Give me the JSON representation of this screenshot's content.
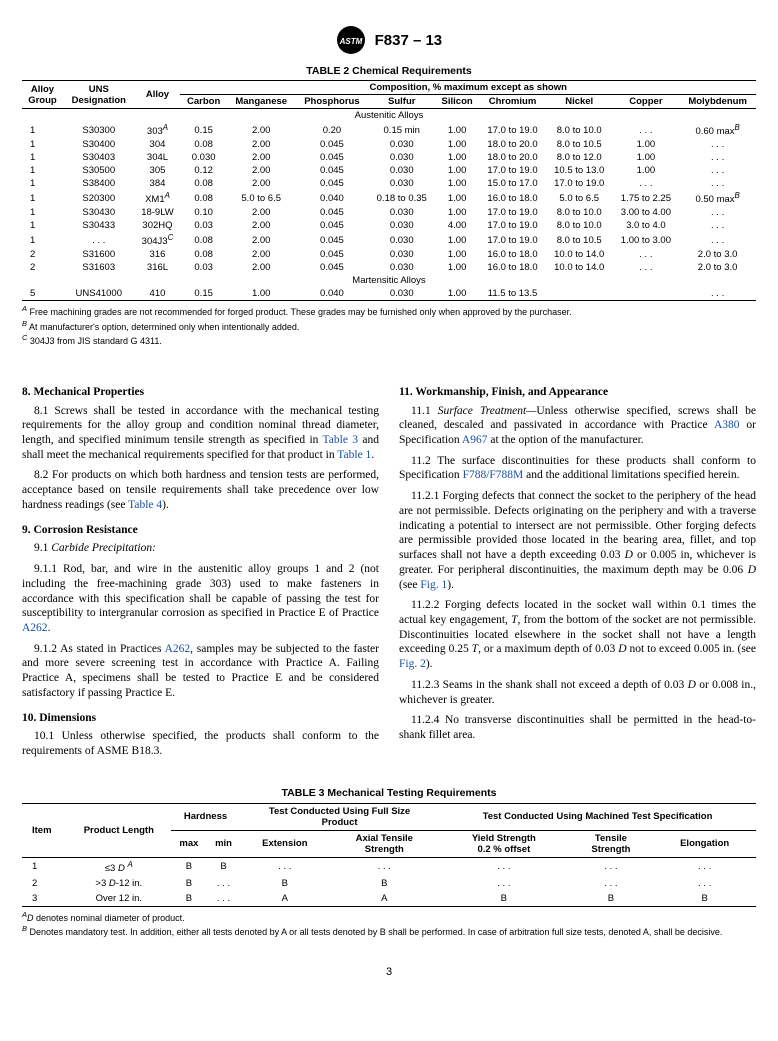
{
  "spec_label": "F837 – 13",
  "table2": {
    "title": "TABLE 2 Chemical Requirements",
    "span_header": "Composition, % maximum except as shown",
    "head_left": [
      "Alloy\nGroup",
      "UNS\nDesignation",
      "Alloy"
    ],
    "head_comp": [
      "Carbon",
      "Manganese",
      "Phosphorus",
      "Sulfur",
      "Silicon",
      "Chromium",
      "Nickel",
      "Copper",
      "Molybdenum"
    ],
    "section1": "Austenitic Alloys",
    "rows_a": [
      [
        "1",
        "S30300",
        {
          "t": "303",
          "s": "A"
        },
        "0.15",
        "2.00",
        "0.20",
        "0.15 min",
        "1.00",
        "17.0 to 19.0",
        "8.0 to 10.0",
        ". . .",
        {
          "t": "0.60 max",
          "s": "B"
        }
      ],
      [
        "1",
        "S30400",
        "304",
        "0.08",
        "2.00",
        "0.045",
        "0.030",
        "1.00",
        "18.0 to 20.0",
        "8.0 to 10.5",
        "1.00",
        ". . ."
      ],
      [
        "1",
        "S30403",
        "304L",
        "0.030",
        "2.00",
        "0.045",
        "0.030",
        "1.00",
        "18.0 to 20.0",
        "8.0 to 12.0",
        "1.00",
        ". . ."
      ],
      [
        "1",
        "S30500",
        "305",
        "0.12",
        "2.00",
        "0.045",
        "0.030",
        "1.00",
        "17.0 to 19.0",
        "10.5 to 13.0",
        "1.00",
        ". . ."
      ],
      [
        "1",
        "S38400",
        "384",
        "0.08",
        "2.00",
        "0.045",
        "0.030",
        "1.00",
        "15.0 to 17.0",
        "17.0 to 19.0",
        ". . .",
        ". . ."
      ],
      [
        "1",
        "S20300",
        {
          "t": "XM1",
          "s": "A"
        },
        "0.08",
        "5.0 to 6.5",
        "0.040",
        "0.18 to 0.35",
        "1.00",
        "16.0 to 18.0",
        "5.0 to 6.5",
        "1.75 to 2.25",
        {
          "t": "0.50 max",
          "s": "B"
        }
      ],
      [
        "1",
        "S30430",
        "18-9LW",
        "0.10",
        "2.00",
        "0.045",
        "0.030",
        "1.00",
        "17.0 to 19.0",
        "8.0 to 10.0",
        "3.00 to 4.00",
        ". . ."
      ],
      [
        "1",
        "S30433",
        "302HQ",
        "0.03",
        "2.00",
        "0.045",
        "0.030",
        "4.00",
        "17.0 to 19.0",
        "8.0 to 10.0",
        "3.0 to 4.0",
        ". . ."
      ],
      [
        "1",
        ". . .",
        {
          "t": "304J3",
          "s": "C"
        },
        "0.08",
        "2.00",
        "0.045",
        "0.030",
        "1.00",
        "17.0 to 19.0",
        "8.0 to 10.5",
        "1.00 to 3.00",
        ". . ."
      ],
      [
        "2",
        "S31600",
        "316",
        "0.08",
        "2.00",
        "0.045",
        "0.030",
        "1.00",
        "16.0 to 18.0",
        "10.0 to 14.0",
        ". . .",
        "2.0 to 3.0"
      ],
      [
        "2",
        "S31603",
        "316L",
        "0.03",
        "2.00",
        "0.045",
        "0.030",
        "1.00",
        "16.0 to 18.0",
        "10.0 to 14.0",
        ". . .",
        "2.0 to 3.0"
      ]
    ],
    "section2": "Martensitic Alloys",
    "rows_m": [
      [
        "5",
        "UNS41000",
        "410",
        "0.15",
        "1.00",
        "0.040",
        "0.030",
        "1.00",
        "11.5 to 13.5",
        "",
        "",
        ". . ."
      ]
    ],
    "footnotes": [
      {
        "s": "A",
        "t": "Free machining grades are not recommended for forged product. These grades may be furnished only when approved by the purchaser."
      },
      {
        "s": "B",
        "t": "At manufacturer's option, determined only when intentionally added."
      },
      {
        "s": "C",
        "t": "304J3 from JIS standard G 4311."
      }
    ]
  },
  "col_left": {
    "s8_h": "8.  Mechanical Properties",
    "s8_1": "8.1  Screws shall be tested in accordance with the mechanical testing requirements for the alloy group and condition nominal thread diameter, length, and specified minimum tensile strength as specified in ",
    "s8_1_ref1": "Table 3",
    "s8_1_mid": " and shall meet the mechanical requirements specified for that product in ",
    "s8_1_ref2": "Table 1",
    "s8_1_end": ".",
    "s8_2": "8.2  For products on which both hardness and tension tests are performed, acceptance based on tensile requirements shall take precedence over low hardness readings (see ",
    "s8_2_ref": "Table 4",
    "s8_2_end": ").",
    "s9_h": "9.  Corrosion Resistance",
    "s9_1_lbl": "9.1  ",
    "s9_1_it": "Carbide Precipitation:",
    "s9_1_1": "9.1.1  Rod, bar, and wire in the austenitic alloy groups 1 and 2 (not including the free-machining grade 303) used to make fasteners in accordance with this specification shall be capable of passing the test for susceptibility to intergranular corrosion as specified in Practice E of Practice ",
    "s9_1_1_ref": "A262",
    "s9_1_1_end": ".",
    "s9_1_2": "9.1.2  As stated in Practices ",
    "s9_1_2_ref": "A262",
    "s9_1_2_end": ", samples may be subjected to the faster and more severe screening test in accordance with Practice A. Failing Practice A, specimens shall be tested to Practice E and be considered satisfactory if passing Practice E.",
    "s10_h": "10.  Dimensions",
    "s10_1": "10.1  Unless otherwise specified, the products shall conform to the requirements of ASME B18.3."
  },
  "col_right": {
    "s11_h": "11.  Workmanship, Finish, and Appearance",
    "s11_1_a": "11.1  ",
    "s11_1_it": "Surface Treatment—",
    "s11_1_b": "Unless otherwise specified, screws shall be cleaned, descaled and passivated in accordance with Practice ",
    "s11_1_ref1": "A380",
    "s11_1_mid": " or Specification ",
    "s11_1_ref2": "A967",
    "s11_1_end": " at the option of the manufacturer.",
    "s11_2": "11.2 The surface discontinuities for these products shall conform to Specification ",
    "s11_2_ref": "F788/F788M",
    "s11_2_end": " and the additional limitations specified herein.",
    "s11_2_1": "11.2.1  Forging defects that connect the socket to the periphery of the head are not permissible. Defects originating on the periphery and with a traverse indicating a potential to intersect are not permissible. Other forging defects are permissible provided those located in the bearing area, fillet, and top surfaces shall not have a depth exceeding 0.03 ",
    "s11_2_1_D": "D",
    "s11_2_1_b": " or 0.005 in, whichever is greater. For peripheral discontinuities, the maximum depth may be 0.06 ",
    "s11_2_1_D2": "D",
    "s11_2_1_c": " (see ",
    "s11_2_1_ref": "Fig. 1",
    "s11_2_1_end": ").",
    "s11_2_2": "11.2.2  Forging defects located in the socket wall within 0.1 times the actual key engagement, ",
    "s11_2_2_T": "T",
    "s11_2_2_b": ", from the bottom of the socket are not permissible. Discontinuities located elsewhere in the socket shall not have a length exceeding 0.25 ",
    "s11_2_2_T2": "T",
    "s11_2_2_c": ", or a maximum depth of 0.03 ",
    "s11_2_2_D": "D",
    "s11_2_2_d": " not to exceed 0.005 in. (see ",
    "s11_2_2_ref": "Fig. 2",
    "s11_2_2_end": ").",
    "s11_2_3": "11.2.3  Seams in the shank shall not exceed a depth of 0.03 ",
    "s11_2_3_D": "D",
    "s11_2_3_end": " or 0.008 in., whichever is greater.",
    "s11_2_4": "11.2.4  No transverse discontinuities shall be permitted in the head-to-shank fillet area."
  },
  "table3": {
    "title": "TABLE 3 Mechanical Testing Requirements",
    "cols": {
      "item": "Item",
      "plen": "Product Length",
      "hard": "Hardness",
      "max": "max",
      "min": "min",
      "full": "Test Conducted Using Full Size Product",
      "ext": "Extension",
      "axial": "Axial Tensile Strength",
      "mach": "Test Conducted Using Machined Test Specification",
      "ys": "Yield Strength 0.2 % offset",
      "ts": "Tensile Strength",
      "el": "Elongation"
    },
    "rows": [
      [
        "1",
        {
          "t": "≤3 ",
          "i": "D",
          "s": "A"
        },
        "B",
        "B",
        ". . .",
        ". . .",
        ". . .",
        ". . .",
        ". . ."
      ],
      [
        "2",
        {
          "t": ">3 ",
          "i": "D",
          "p": "-12 in."
        },
        "B",
        ". . .",
        "B",
        "B",
        ". . .",
        ". . .",
        ". . ."
      ],
      [
        "3",
        "Over 12 in.",
        "B",
        ". . .",
        "A",
        "A",
        "B",
        "B",
        "B"
      ]
    ],
    "footnotes": [
      {
        "s": "A",
        "t": " D denotes nominal diameter of product.",
        "it": true
      },
      {
        "s": "B",
        "t": " Denotes mandatory test. In addition, either all tests denoted by A or all tests denoted by B shall be performed. In case of arbitration full size tests, denoted A, shall be decisive."
      }
    ]
  },
  "page": "3"
}
